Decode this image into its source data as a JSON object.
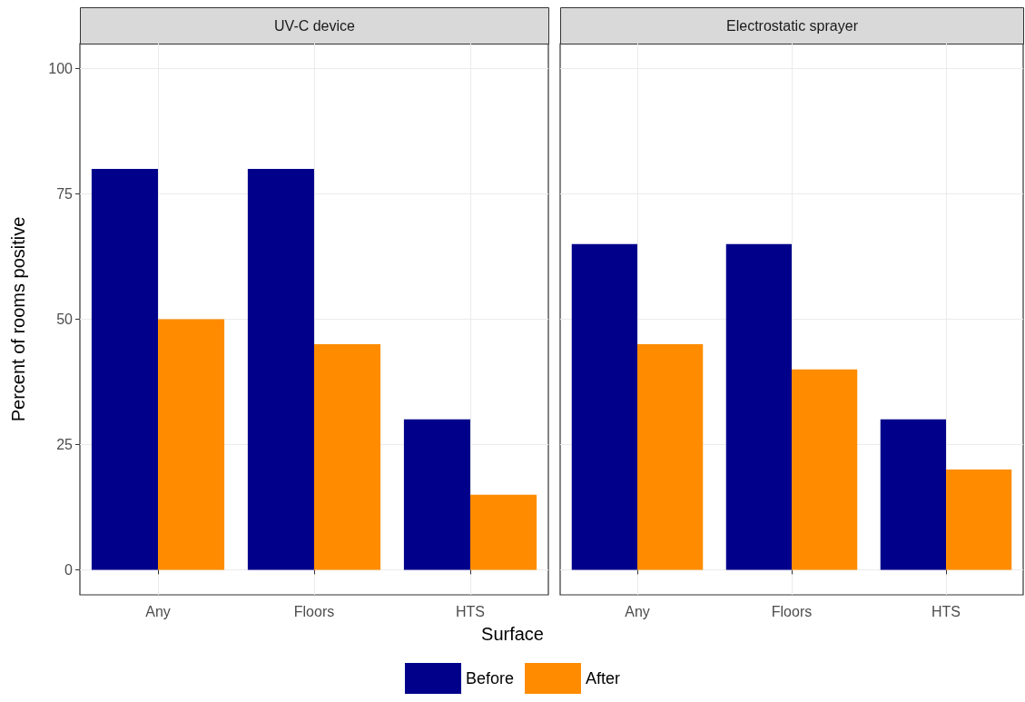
{
  "chart_data": [
    {
      "type": "bar",
      "title": "UV-C device",
      "xlabel": "Surface",
      "ylabel": "Percent of rooms positive",
      "categories": [
        "Any",
        "Floors",
        "HTS"
      ],
      "series": [
        {
          "name": "Before",
          "color": "#00008b",
          "values": [
            80,
            80,
            30
          ]
        },
        {
          "name": "After",
          "color": "#ff8c00",
          "values": [
            50,
            45,
            15
          ]
        }
      ],
      "ylim": [
        -5,
        105
      ],
      "yticks": [
        0,
        25,
        50,
        75,
        100
      ],
      "grid": true,
      "legend": "bottom"
    },
    {
      "type": "bar",
      "title": "Electrostatic sprayer",
      "categories": [
        "Any",
        "Floors",
        "HTS"
      ],
      "series": [
        {
          "color": "#00008b",
          "values": [
            65,
            65,
            30
          ]
        },
        {
          "color": "#ff8c00",
          "values": [
            45,
            40,
            20
          ]
        }
      ],
      "ylim": [
        -5,
        105
      ],
      "yticks": [
        0,
        25,
        50,
        75,
        100
      ],
      "grid": true,
      "tick_labels": "x"
    }
  ]
}
